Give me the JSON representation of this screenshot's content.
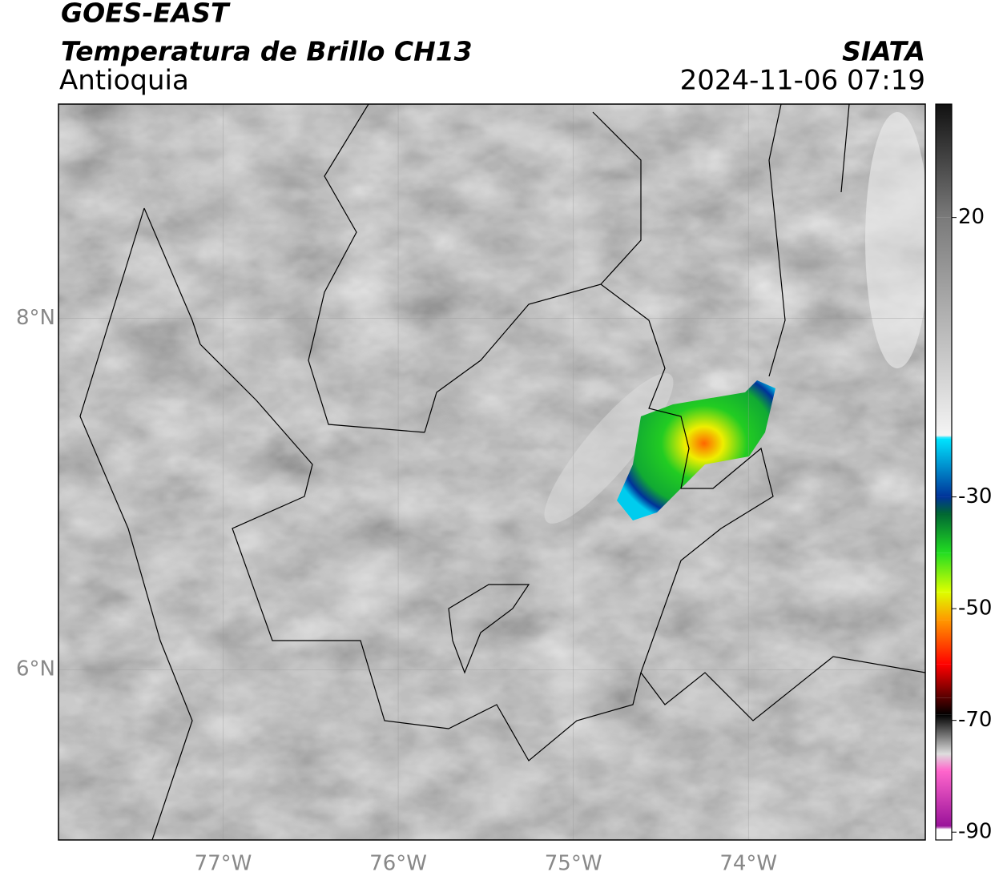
{
  "header": {
    "title": "GOES-EAST",
    "subtitle": "Temperatura de Brillo CH13",
    "region": "Antioquia",
    "source": "SIATA",
    "datetime": "2024-11-06 07:19"
  },
  "map": {
    "xlim": [
      -77.94,
      -72.99
    ],
    "ylim": [
      5.03,
      9.22
    ],
    "xticks": [
      {
        "value": -77,
        "label": "77°W"
      },
      {
        "value": -76,
        "label": "76°W"
      },
      {
        "value": -75,
        "label": "75°W"
      },
      {
        "value": -74,
        "label": "74°W"
      }
    ],
    "yticks": [
      {
        "value": 6,
        "label": "6°N"
      },
      {
        "value": 8,
        "label": "8°N"
      }
    ],
    "grid": true
  },
  "colorbar": {
    "lim": [
      -91.4,
      40.3
    ],
    "ticks": [
      20,
      -30,
      -50,
      -70,
      -90
    ],
    "stops": [
      {
        "value": 40.3,
        "color": "#111111"
      },
      {
        "value": 20,
        "color": "#7a7a7a"
      },
      {
        "value": -19,
        "color": "#f4f4f4"
      },
      {
        "value": -19.5,
        "color": "#00e5ff"
      },
      {
        "value": -30,
        "color": "#003399"
      },
      {
        "value": -33,
        "color": "#006633"
      },
      {
        "value": -40,
        "color": "#22dd22"
      },
      {
        "value": -47,
        "color": "#ddff00"
      },
      {
        "value": -52,
        "color": "#ff9900"
      },
      {
        "value": -60,
        "color": "#ff0000"
      },
      {
        "value": -66,
        "color": "#550000"
      },
      {
        "value": -69,
        "color": "#000000"
      },
      {
        "value": -76,
        "color": "#dddddd"
      },
      {
        "value": -79,
        "color": "#ff66cc"
      },
      {
        "value": -89,
        "color": "#991199"
      },
      {
        "value": -89.5,
        "color": "#ffffff"
      },
      {
        "value": -91.4,
        "color": "#ffffff"
      }
    ]
  }
}
